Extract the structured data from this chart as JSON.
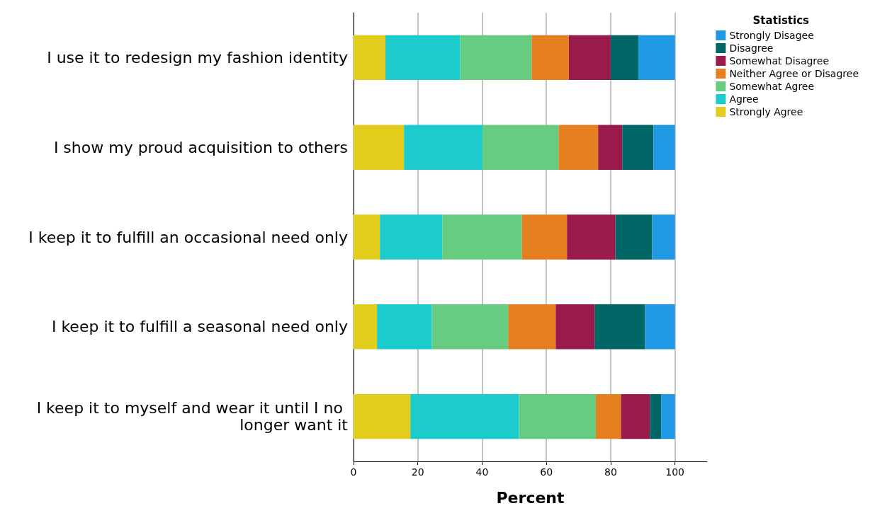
{
  "chart_data": {
    "type": "bar",
    "orientation": "horizontal",
    "stacked": true,
    "xlabel": "Percent",
    "legend_title": "Statistics",
    "legend": "top right",
    "grid": "x",
    "xlim": [
      0,
      110
    ],
    "xticks": [
      0,
      20,
      40,
      60,
      80,
      100
    ],
    "categories": [
      "I use it to redesign my fashion identity",
      "I show my proud acquisition to others",
      "I keep it to fulfill an occasional need only",
      "I keep it to fulfill a seasonal need only",
      "I keep it to myself and wear it until I no longer want it"
    ],
    "series": [
      {
        "name": "Strongly Agree",
        "color": "#e3cd1c",
        "values": [
          9.9,
          15.7,
          8.2,
          7.3,
          17.7
        ]
      },
      {
        "name": "Agree",
        "color": "#1ccbcb",
        "values": [
          23.3,
          24.4,
          19.4,
          17.1,
          33.8
        ]
      },
      {
        "name": "Somewhat Agree",
        "color": "#66cc80",
        "values": [
          22.2,
          23.7,
          24.8,
          23.7,
          23.9
        ]
      },
      {
        "name": "Neither Agree or Disagree",
        "color": "#e57f1f",
        "values": [
          11.6,
          12.3,
          14.0,
          14.8,
          7.8
        ]
      },
      {
        "name": "Somewhat Disagree",
        "color": "#9a1a4c",
        "values": [
          13.0,
          7.5,
          15.1,
          12.1,
          9.0
        ]
      },
      {
        "name": "Disagree",
        "color": "#006666",
        "values": [
          8.6,
          9.7,
          11.4,
          15.7,
          3.5
        ]
      },
      {
        "name": "Strongly Disagee",
        "color": "#1f99e3",
        "values": [
          11.4,
          6.7,
          7.1,
          9.3,
          4.3
        ]
      }
    ]
  }
}
